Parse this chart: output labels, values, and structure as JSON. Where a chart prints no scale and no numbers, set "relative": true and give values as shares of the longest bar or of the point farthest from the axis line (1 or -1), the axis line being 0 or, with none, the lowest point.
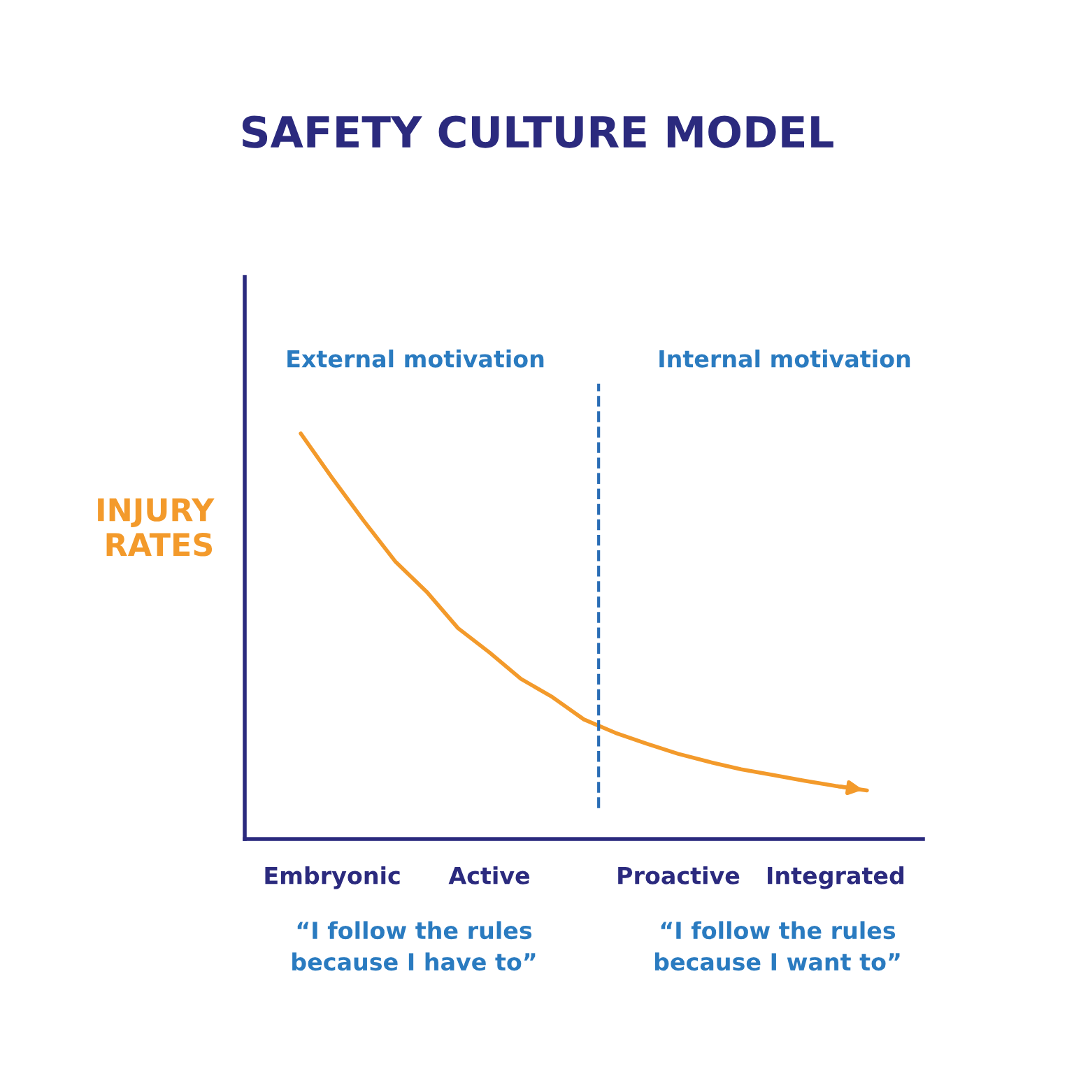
{
  "chart_data": {
    "type": "line",
    "title": "SAFETY CULTURE MODEL",
    "ylabel": "INJURY\nRATES",
    "relative": true,
    "categories": [
      null,
      "Embryonic",
      null,
      null,
      null,
      null,
      "Active",
      null,
      null,
      null,
      null,
      null,
      "Proactive",
      null,
      null,
      null,
      null,
      "Integrated",
      null
    ],
    "series": [
      {
        "color": "#f39a2b",
        "values": [
          1.0,
          0.89,
          0.785,
          0.685,
          0.61,
          0.52,
          0.46,
          0.395,
          0.35,
          0.295,
          0.262,
          0.235,
          0.21,
          0.19,
          0.172,
          0.158,
          0.144,
          0.131,
          0.12
        ]
      }
    ],
    "annotations": [
      "External motivation",
      "Internal motivation",
      "“I follow the rules\nbecause I have to”",
      "“I follow the rules\nbecause I want to”"
    ],
    "grid": false,
    "legend": false,
    "marker": "none",
    "line_style": "solid"
  }
}
